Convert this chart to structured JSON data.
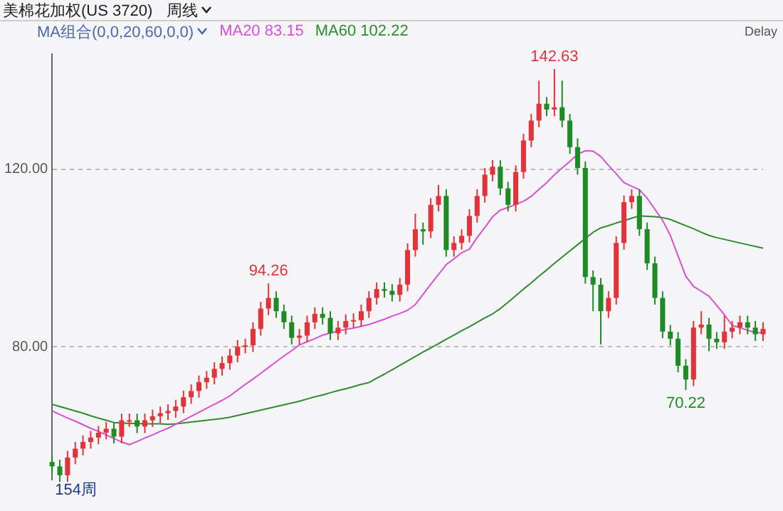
{
  "chart_data": {
    "type": "candlestick",
    "title": "美棉花加权(US 3720)",
    "subtitle": "MA组合(0,0,20,60,0,0)",
    "annotations": [
      "周线",
      "Delay",
      "154周",
      {
        "text": "94.26",
        "y": 94.26
      },
      {
        "text": "142.63",
        "y": 142.63
      },
      {
        "text": "70.22",
        "y": 70.22
      }
    ],
    "categories": [
      null,
      null,
      null,
      null,
      null,
      null,
      null,
      null,
      null,
      null,
      null,
      null,
      null,
      null,
      null,
      null,
      null,
      null,
      null,
      null,
      null,
      null,
      null,
      null,
      null,
      null,
      null,
      null,
      null,
      null,
      null,
      null,
      null,
      null,
      null,
      null,
      null,
      null,
      null,
      null,
      null,
      null,
      null,
      null,
      null,
      null,
      null,
      null,
      null,
      null,
      null,
      null,
      null,
      null,
      null,
      null,
      null,
      null,
      null,
      null,
      null,
      null,
      null,
      null,
      null,
      null,
      null,
      null,
      null,
      null,
      null,
      null,
      null,
      null,
      null,
      null,
      null,
      null,
      null,
      null,
      null,
      null,
      null,
      null,
      null,
      null,
      null,
      null,
      null,
      null,
      null,
      null,
      null
    ],
    "ylim": [
      50,
      146
    ],
    "yticks": [
      {
        "value": 80,
        "label": "80.00"
      },
      {
        "value": 120,
        "label": "120.00"
      }
    ],
    "tick_labels": "y",
    "grid": "y",
    "legend": "top left",
    "ohlc": [
      [
        54,
        55.5,
        51.5,
        53
      ],
      [
        53,
        54.5,
        49.5,
        51
      ],
      [
        51,
        56.5,
        49.5,
        55
      ],
      [
        55,
        58.5,
        53.5,
        57
      ],
      [
        57,
        60,
        55.5,
        58.5
      ],
      [
        58.5,
        61,
        57,
        59.5
      ],
      [
        59.5,
        62.1,
        58,
        60.6
      ],
      [
        60.6,
        63,
        59.1,
        61.5
      ],
      [
        61.5,
        63,
        58.2,
        59.7
      ],
      [
        59.7,
        64.9,
        58.2,
        63.4
      ],
      [
        63.4,
        64.9,
        61.9,
        63.4
      ],
      [
        63.4,
        64.9,
        60.5,
        62
      ],
      [
        62,
        64.9,
        60.5,
        63.4
      ],
      [
        63.4,
        65.8,
        61.9,
        64.3
      ],
      [
        64.3,
        66.5,
        62.8,
        65
      ],
      [
        65,
        67,
        63.5,
        65.5
      ],
      [
        65.5,
        68,
        64,
        66.5
      ],
      [
        66.5,
        70.1,
        65,
        68.6
      ],
      [
        68.6,
        71.5,
        67.1,
        70
      ],
      [
        70,
        73.5,
        68.5,
        72
      ],
      [
        72,
        74.5,
        70.5,
        73
      ],
      [
        73,
        76.5,
        71.5,
        75
      ],
      [
        75,
        77.8,
        73.5,
        76.3
      ],
      [
        76.3,
        79.5,
        74.8,
        78
      ],
      [
        78,
        81.5,
        76.5,
        80
      ],
      [
        80,
        81.8,
        78.5,
        80.3
      ],
      [
        80.3,
        85.5,
        78.8,
        84
      ],
      [
        84,
        90.1,
        82.5,
        88.6
      ],
      [
        88.6,
        94.26,
        87.1,
        91
      ],
      [
        91,
        92.5,
        86.5,
        88
      ],
      [
        88,
        89.5,
        84,
        85.5
      ],
      [
        85.5,
        87,
        80.5,
        82
      ],
      [
        82,
        84,
        80.5,
        82.5
      ],
      [
        82.5,
        87,
        81,
        85.5
      ],
      [
        85.5,
        88.9,
        84,
        87.4
      ],
      [
        87.4,
        88.9,
        85,
        86.5
      ],
      [
        86.5,
        88,
        81.5,
        83
      ],
      [
        83,
        85.8,
        81.5,
        84.3
      ],
      [
        84.3,
        87.3,
        82.8,
        85.8
      ],
      [
        85.8,
        87.5,
        84.3,
        86
      ],
      [
        86,
        89.5,
        84.5,
        88
      ],
      [
        88,
        92.5,
        86.5,
        91
      ],
      [
        91,
        94.5,
        89.5,
        93
      ],
      [
        93,
        94.5,
        91.1,
        92.6
      ],
      [
        92.6,
        94.1,
        90.2,
        91.7
      ],
      [
        91.7,
        95.5,
        90.2,
        94
      ],
      [
        94,
        103.3,
        92.5,
        101.8
      ],
      [
        101.8,
        110,
        100.3,
        106.5
      ],
      [
        106.5,
        108,
        103,
        106
      ],
      [
        106,
        113.5,
        104.5,
        112
      ],
      [
        112,
        116.5,
        110.5,
        114
      ],
      [
        114,
        115.5,
        100.3,
        101.8
      ],
      [
        101.8,
        104.9,
        100.3,
        103.4
      ],
      [
        103.4,
        106.5,
        101.9,
        105
      ],
      [
        105,
        111,
        103.5,
        109.5
      ],
      [
        109.5,
        115.5,
        108,
        114
      ],
      [
        114,
        120.3,
        112.5,
        118.8
      ],
      [
        118.8,
        122.1,
        117.3,
        120.6
      ],
      [
        120.6,
        122.1,
        114.2,
        115.7
      ],
      [
        115.7,
        117.2,
        110.5,
        112
      ],
      [
        112,
        120.9,
        110.5,
        119.4
      ],
      [
        119.4,
        128,
        117.9,
        126.5
      ],
      [
        126.5,
        132.5,
        125,
        131
      ],
      [
        131,
        140,
        129.5,
        134.8
      ],
      [
        134.8,
        136.3,
        132,
        133.5
      ],
      [
        133.5,
        142.63,
        132,
        134
      ],
      [
        134,
        140,
        129.5,
        131
      ],
      [
        131,
        132.5,
        123.5,
        125
      ],
      [
        125,
        127,
        118.8,
        120.3
      ],
      [
        120.3,
        121.8,
        94.2,
        95.7
      ],
      [
        95.7,
        97.2,
        88,
        94
      ],
      [
        94,
        95.5,
        80.5,
        88
      ],
      [
        88,
        92.5,
        86.5,
        91
      ],
      [
        91,
        104.9,
        89.5,
        103.4
      ],
      [
        103.4,
        114.1,
        101.9,
        112.6
      ],
      [
        112.6,
        115.5,
        111.1,
        114
      ],
      [
        114,
        115.5,
        105,
        106.5
      ],
      [
        106.5,
        108,
        97.3,
        98.8
      ],
      [
        98.8,
        100.3,
        89.5,
        91
      ],
      [
        91,
        92.5,
        81.9,
        83.4
      ],
      [
        83.4,
        84.9,
        80.3,
        81.8
      ],
      [
        81.8,
        83.3,
        74.2,
        75.7
      ],
      [
        75.7,
        77.2,
        70.22,
        72.6
      ],
      [
        72.6,
        85.8,
        71.1,
        84.3
      ],
      [
        84.3,
        88,
        82.8,
        85
      ],
      [
        85,
        86.5,
        79,
        81.8
      ],
      [
        81.8,
        83.3,
        79.5,
        81
      ],
      [
        81,
        87,
        79.5,
        83.4
      ],
      [
        83.4,
        85.8,
        81.9,
        84.3
      ],
      [
        84.3,
        87,
        82.8,
        85.5
      ],
      [
        85.5,
        87,
        82.8,
        84.3
      ],
      [
        84.3,
        85.8,
        81.3,
        82.8
      ],
      [
        82.8,
        85.5,
        81.3,
        84
      ]
    ],
    "colors": [
      "#1f8b24",
      "#1f8b24",
      "#e0343a",
      "#e0343a",
      "#e0343a",
      "#e0343a",
      "#e0343a",
      "#e0343a",
      "#1f8b24",
      "#e0343a",
      "#e0343a",
      "#1f8b24",
      "#e0343a",
      "#e0343a",
      "#e0343a",
      "#e0343a",
      "#e0343a",
      "#e0343a",
      "#e0343a",
      "#e0343a",
      "#e0343a",
      "#e0343a",
      "#e0343a",
      "#e0343a",
      "#e0343a",
      "#e0343a",
      "#e0343a",
      "#e0343a",
      "#e0343a",
      "#1f8b24",
      "#1f8b24",
      "#1f8b24",
      "#e0343a",
      "#e0343a",
      "#e0343a",
      "#1f8b24",
      "#1f8b24",
      "#e0343a",
      "#e0343a",
      "#e0343a",
      "#e0343a",
      "#e0343a",
      "#e0343a",
      "#1f8b24",
      "#1f8b24",
      "#e0343a",
      "#e0343a",
      "#e0343a",
      "#1f8b24",
      "#e0343a",
      "#e0343a",
      "#1f8b24",
      "#e0343a",
      "#e0343a",
      "#e0343a",
      "#e0343a",
      "#e0343a",
      "#e0343a",
      "#1f8b24",
      "#1f8b24",
      "#e0343a",
      "#e0343a",
      "#e0343a",
      "#e0343a",
      "#1f8b24",
      "#e0343a",
      "#1f8b24",
      "#1f8b24",
      "#1f8b24",
      "#1f8b24",
      "#1f8b24",
      "#1f8b24",
      "#e0343a",
      "#e0343a",
      "#e0343a",
      "#e0343a",
      "#1f8b24",
      "#1f8b24",
      "#1f8b24",
      "#1f8b24",
      "#1f8b24",
      "#1f8b24",
      "#1f8b24",
      "#e0343a",
      "#e0343a",
      "#1f8b24",
      "#1f8b24",
      "#e0343a",
      "#e0343a",
      "#e0343a",
      "#1f8b24",
      "#1f8b24",
      "#e0343a"
    ],
    "series": [
      {
        "type": "line",
        "name": "MA20 83.15",
        "color": "#d94fd4",
        "values": [
          65.5,
          64.7,
          63.9,
          63.2,
          62.4,
          61.6,
          60.9,
          60.1,
          59.3,
          58.5,
          57.9,
          58.6,
          59.4,
          60.1,
          60.9,
          61.6,
          62.5,
          63.4,
          64.3,
          65.2,
          66.1,
          67.0,
          67.9,
          68.9,
          70.2,
          71.5,
          72.7,
          74.0,
          75.3,
          76.6,
          77.9,
          79.1,
          80.4,
          81.1,
          81.8,
          82.6,
          83.1,
          83.5,
          83.9,
          84.2,
          84.6,
          85.0,
          85.6,
          86.2,
          86.9,
          87.5,
          88.2,
          89.5,
          91.8,
          94.1,
          96.3,
          98.5,
          99.8,
          101.2,
          102.0,
          104.6,
          106.9,
          109.3,
          110.8,
          111.4,
          112.1,
          112.8,
          113.9,
          115.5,
          117.0,
          118.8,
          120.3,
          121.8,
          123.4,
          124.2,
          124.1,
          122.9,
          120.9,
          119.0,
          117.0,
          116.2,
          115.4,
          113.5,
          111.0,
          108.5,
          105.1,
          100.5,
          95.9,
          93.6,
          92.5,
          91.4,
          89.3,
          87.2,
          84.8,
          84.3,
          83.7,
          83.2,
          83.15
        ]
      },
      {
        "type": "line",
        "name": "MA60 102.22",
        "color": "#2e8b2e",
        "values": [
          67,
          66.5,
          66.0,
          65.5,
          65.0,
          64.4,
          63.9,
          63.4,
          62.9,
          62.8,
          62.7,
          62.7,
          62.6,
          62.6,
          62.6,
          62.5,
          62.6,
          62.8,
          63.0,
          63.2,
          63.4,
          63.6,
          63.8,
          64.1,
          64.5,
          64.9,
          65.3,
          65.7,
          66.1,
          66.5,
          66.9,
          67.3,
          67.7,
          68.2,
          68.7,
          69.1,
          69.6,
          70.1,
          70.5,
          71.0,
          71.5,
          71.9,
          72.9,
          73.8,
          74.8,
          75.8,
          76.8,
          77.8,
          78.8,
          79.7,
          80.7,
          81.7,
          82.6,
          83.6,
          84.5,
          85.5,
          86.5,
          87.4,
          88.6,
          90.0,
          91.5,
          93.0,
          94.4,
          95.9,
          97.3,
          98.8,
          100.2,
          101.6,
          103.0,
          104.4,
          105.8,
          106.8,
          107.3,
          107.9,
          108.4,
          109.0,
          109.5,
          109.4,
          109.3,
          109.1,
          108.7,
          108.0,
          107.3,
          106.6,
          105.8,
          105.1,
          104.6,
          104.2,
          103.8,
          103.4,
          103.0,
          102.6,
          102.22
        ]
      }
    ]
  }
}
